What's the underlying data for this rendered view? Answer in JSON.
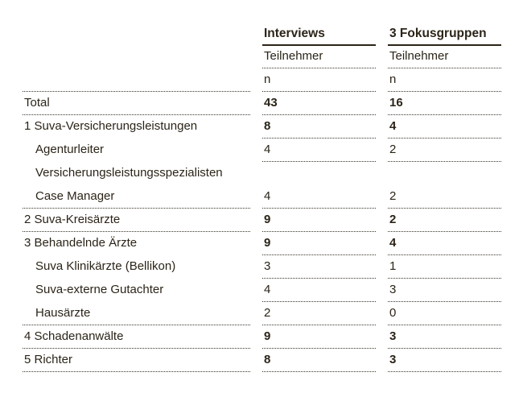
{
  "columns": {
    "interviews": {
      "title": "Interviews",
      "subheader": "Teilnehmer",
      "unit": "n"
    },
    "fokusgruppen": {
      "title": "3 Fokusgruppen",
      "subheader": "Teilnehmer",
      "unit": "n"
    }
  },
  "rows": [
    {
      "label": "Total",
      "interviews": "43",
      "fokusgruppen": "16",
      "bold_values": true,
      "indent": false
    },
    {
      "label": "1 Suva-Versicherungsleistungen",
      "interviews": "8",
      "fokusgruppen": "4",
      "bold_values": true,
      "indent": false
    },
    {
      "label": "Agenturleiter",
      "interviews": "4",
      "fokusgruppen": "2",
      "bold_values": false,
      "indent": true
    },
    {
      "label": "Versicherungsleistungsspezialisten",
      "interviews": "",
      "fokusgruppen": "",
      "bold_values": false,
      "indent": true
    },
    {
      "label": "Case Manager",
      "interviews": "4",
      "fokusgruppen": "2",
      "bold_values": false,
      "indent": true
    },
    {
      "label": "2 Suva-Kreisärzte",
      "interviews": "9",
      "fokusgruppen": "2",
      "bold_values": true,
      "indent": false
    },
    {
      "label": "3 Behandelnde Ärzte",
      "interviews": "9",
      "fokusgruppen": "4",
      "bold_values": true,
      "indent": false
    },
    {
      "label": "Suva Klinikärzte (Bellikon)",
      "interviews": "3",
      "fokusgruppen": "1",
      "bold_values": false,
      "indent": true
    },
    {
      "label": "Suva-externe Gutachter",
      "interviews": "4",
      "fokusgruppen": "3",
      "bold_values": false,
      "indent": true
    },
    {
      "label": "Hausärzte",
      "interviews": "2",
      "fokusgruppen": "0",
      "bold_values": false,
      "indent": true
    },
    {
      "label": "4 Schadenanwälte",
      "interviews": "9",
      "fokusgruppen": "3",
      "bold_values": true,
      "indent": false
    },
    {
      "label": "5 Richter",
      "interviews": "8",
      "fokusgruppen": "3",
      "bold_values": true,
      "indent": false
    }
  ]
}
